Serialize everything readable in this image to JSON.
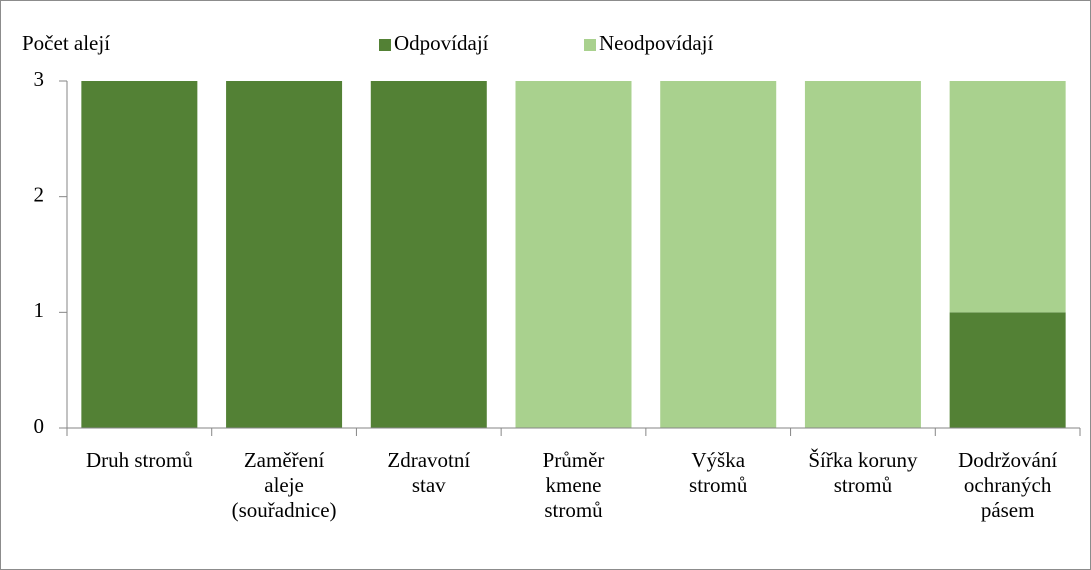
{
  "chart_data": {
    "type": "stacked_bar",
    "y_label": "Počet alejí",
    "categories": [
      "Druh stromů",
      "Zaměření\naleje\n(souřadnice)",
      "Zdravotní\nstav",
      "Průměr\nkmene\nstromů",
      "Výška\nstromů",
      "Šířka koruny\nstromů",
      "Dodržování\nochraných\npásem"
    ],
    "series": [
      {
        "name": "Odpovídají",
        "color": "#538135",
        "values": [
          3,
          3,
          3,
          0,
          0,
          0,
          1
        ]
      },
      {
        "name": "Neodpovídají",
        "color": "#a9d18e",
        "values": [
          0,
          0,
          0,
          3,
          3,
          3,
          2
        ]
      }
    ],
    "ylim": [
      0,
      3
    ],
    "yticks": [
      0,
      1,
      2,
      3
    ],
    "legend": "top"
  }
}
